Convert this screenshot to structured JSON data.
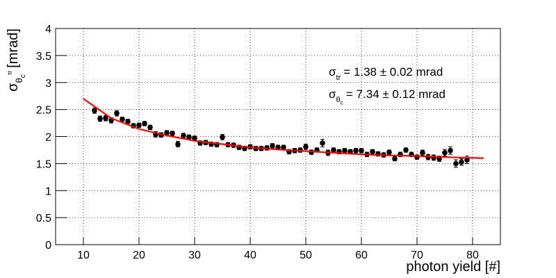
{
  "chart_data": {
    "type": "scatter",
    "xlabel": "photon yield [#]",
    "ylabel": {
      "symbol": "σ",
      "sub": "θ",
      "subsub": "c",
      "sup": "tr",
      "text": "[mrad]"
    },
    "xlim": [
      5,
      85
    ],
    "ylim": [
      0,
      4
    ],
    "xticks": [
      10,
      20,
      30,
      40,
      50,
      60,
      70,
      80
    ],
    "yticks": [
      0,
      0.5,
      1,
      1.5,
      2,
      2.5,
      3,
      3.5,
      4
    ],
    "grid": true,
    "x": [
      12,
      13,
      14,
      15,
      16,
      17,
      18,
      19,
      20,
      21,
      22,
      23,
      24,
      25,
      26,
      27,
      28,
      29,
      30,
      31,
      32,
      33,
      34,
      35,
      36,
      37,
      38,
      39,
      40,
      41,
      42,
      43,
      44,
      45,
      46,
      47,
      48,
      49,
      50,
      51,
      52,
      53,
      54,
      55,
      56,
      57,
      58,
      59,
      60,
      61,
      62,
      63,
      64,
      65,
      66,
      67,
      68,
      69,
      70,
      71,
      72,
      73,
      74,
      75,
      76,
      77,
      78,
      79
    ],
    "series": [
      {
        "color": "#000000",
        "values": [
          2.48,
          2.33,
          2.34,
          2.3,
          2.43,
          2.32,
          2.28,
          2.2,
          2.21,
          2.24,
          2.17,
          2.04,
          2.03,
          2.07,
          2.06,
          1.86,
          2.02,
          1.99,
          1.97,
          1.88,
          1.89,
          1.86,
          1.85,
          1.99,
          1.85,
          1.84,
          1.8,
          1.78,
          1.81,
          1.78,
          1.78,
          1.79,
          1.83,
          1.8,
          1.8,
          1.72,
          1.74,
          1.75,
          1.81,
          1.71,
          1.75,
          1.88,
          1.7,
          1.75,
          1.72,
          1.74,
          1.72,
          1.74,
          1.74,
          1.67,
          1.72,
          1.68,
          1.66,
          1.71,
          1.59,
          1.67,
          1.75,
          1.67,
          1.62,
          1.7,
          1.62,
          1.61,
          1.59,
          1.7,
          1.74,
          1.5,
          1.53,
          1.57
        ],
        "errors": [
          0.05,
          0.05,
          0.05,
          0.05,
          0.05,
          0.04,
          0.04,
          0.04,
          0.04,
          0.04,
          0.04,
          0.05,
          0.04,
          0.04,
          0.04,
          0.05,
          0.04,
          0.04,
          0.04,
          0.04,
          0.04,
          0.04,
          0.04,
          0.05,
          0.04,
          0.04,
          0.04,
          0.04,
          0.04,
          0.04,
          0.04,
          0.04,
          0.04,
          0.04,
          0.04,
          0.04,
          0.04,
          0.04,
          0.05,
          0.04,
          0.04,
          0.07,
          0.05,
          0.04,
          0.04,
          0.04,
          0.04,
          0.04,
          0.04,
          0.04,
          0.04,
          0.04,
          0.04,
          0.04,
          0.04,
          0.04,
          0.04,
          0.04,
          0.04,
          0.05,
          0.05,
          0.05,
          0.05,
          0.06,
          0.07,
          0.07,
          0.06,
          0.07
        ]
      }
    ],
    "fit": {
      "color": "#ff0000",
      "x": [
        10,
        15,
        20,
        25,
        30,
        35,
        40,
        45,
        50,
        55,
        60,
        65,
        70,
        75,
        82
      ],
      "values": [
        2.7,
        2.34,
        2.14,
        2.02,
        1.92,
        1.86,
        1.8,
        1.76,
        1.73,
        1.7,
        1.67,
        1.65,
        1.64,
        1.62,
        1.6
      ]
    },
    "annotations": [
      {
        "symbol": "σ",
        "sub": "tr",
        "text": "= 1.38  ± 0.02 mrad"
      },
      {
        "symbol": "σ",
        "sub": "θ",
        "subsub": "c",
        "text": "= 7.34  ± 0.12 mrad"
      }
    ]
  }
}
